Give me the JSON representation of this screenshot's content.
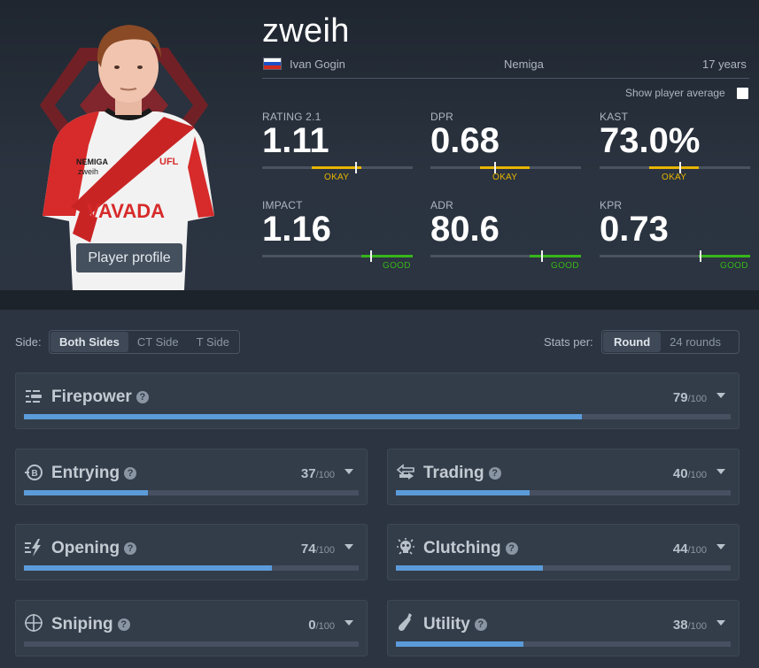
{
  "player": {
    "nickname": "zweih",
    "real_name": "Ivan Gogin",
    "team": "Nemiga",
    "age": "17 years",
    "country_flag": "russia-flag",
    "profile_button": "Player profile",
    "jersey_text": {
      "team": "NEMIGA",
      "player": "zweih",
      "sponsor": "VAVADA",
      "league": "UFL"
    }
  },
  "header": {
    "show_average_label": "Show player average"
  },
  "stats": [
    {
      "label": "RATING 2.1",
      "value": "1.11",
      "status": "OKAY"
    },
    {
      "label": "DPR",
      "value": "0.68",
      "status": "OKAY"
    },
    {
      "label": "KAST",
      "value": "73.0%",
      "status": "OKAY"
    },
    {
      "label": "IMPACT",
      "value": "1.16",
      "status": "GOOD"
    },
    {
      "label": "ADR",
      "value": "80.6",
      "status": "GOOD"
    },
    {
      "label": "KPR",
      "value": "0.73",
      "status": "GOOD"
    }
  ],
  "filters": {
    "side_label": "Side:",
    "sides": [
      "Both Sides",
      "CT Side",
      "T Side"
    ],
    "active_side": "Both Sides",
    "stats_per_label": "Stats per:",
    "per_options": [
      "Round",
      "24 rounds"
    ],
    "active_per": "Round"
  },
  "categories": {
    "firepower": {
      "title": "Firepower",
      "score": "79",
      "max": "/100",
      "icon": "firepower-icon",
      "fraction": 0.79
    },
    "entrying": {
      "title": "Entrying",
      "score": "37",
      "max": "/100",
      "icon": "entrying-icon",
      "fraction": 0.37
    },
    "trading": {
      "title": "Trading",
      "score": "40",
      "max": "/100",
      "icon": "trading-icon",
      "fraction": 0.4
    },
    "opening": {
      "title": "Opening",
      "score": "74",
      "max": "/100",
      "icon": "opening-icon",
      "fraction": 0.74
    },
    "clutching": {
      "title": "Clutching",
      "score": "44",
      "max": "/100",
      "icon": "clutching-icon",
      "fraction": 0.44
    },
    "sniping": {
      "title": "Sniping",
      "score": "0",
      "max": "/100",
      "icon": "sniping-icon",
      "fraction": 0.0
    },
    "utility": {
      "title": "Utility",
      "score": "38",
      "max": "/100",
      "icon": "utility-icon",
      "fraction": 0.38
    }
  },
  "colors": {
    "okay": "#e8b400",
    "good": "#37b51a",
    "bar_fill": "#5b9bd9",
    "card_bg": "#333d4a",
    "page_bg": "#2b3440"
  }
}
